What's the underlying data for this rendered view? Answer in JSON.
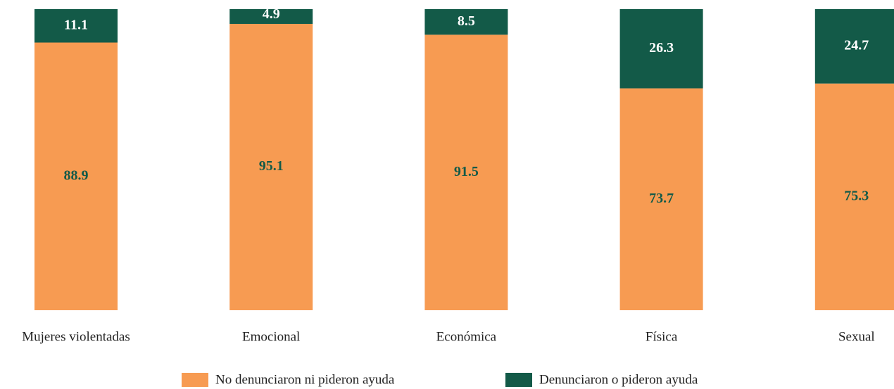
{
  "chart_data": {
    "type": "stacked_bar",
    "categories": [
      "Mujeres violentadas",
      "Emocional",
      "Económica",
      "Física",
      "Sexual"
    ],
    "series": [
      {
        "name": "No denunciaron ni pideron ayuda",
        "color": "#f79b52",
        "values": [
          88.9,
          95.1,
          91.5,
          73.7,
          75.3
        ]
      },
      {
        "name": "Denunciaron o pideron ayuda",
        "color": "#135a48",
        "values": [
          11.1,
          4.9,
          8.5,
          26.3,
          24.7
        ]
      }
    ],
    "legend": "bottom"
  }
}
